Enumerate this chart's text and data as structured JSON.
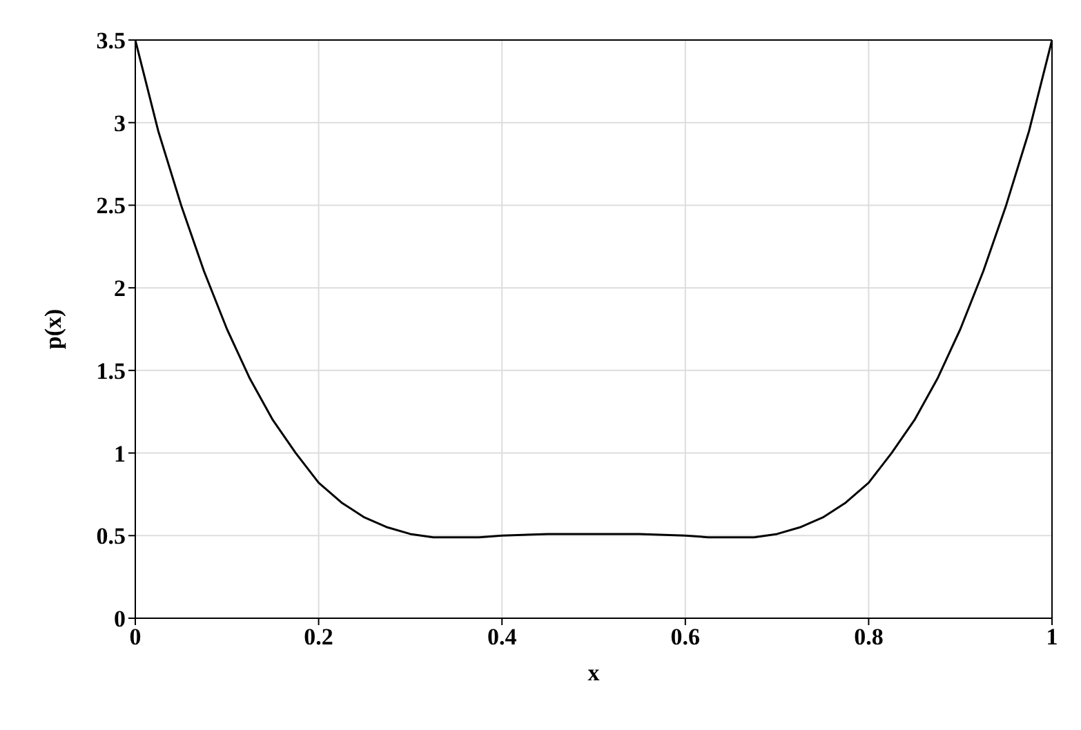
{
  "chart_data": {
    "type": "line",
    "xlabel": "x",
    "ylabel": "p(x)",
    "xlim": [
      0,
      1
    ],
    "ylim": [
      0,
      3.5
    ],
    "xticks": [
      0,
      0.2,
      0.4,
      0.6,
      0.8,
      1
    ],
    "yticks": [
      0,
      0.5,
      1,
      1.5,
      2,
      2.5,
      3,
      3.5
    ],
    "grid": true,
    "marker": "none",
    "line_style": "solid",
    "x": [
      0,
      0.025,
      0.05,
      0.075,
      0.1,
      0.125,
      0.15,
      0.175,
      0.2,
      0.225,
      0.25,
      0.275,
      0.3,
      0.325,
      0.35,
      0.375,
      0.4,
      0.45,
      0.5,
      0.55,
      0.6,
      0.625,
      0.65,
      0.675,
      0.7,
      0.725,
      0.75,
      0.775,
      0.8,
      0.825,
      0.85,
      0.875,
      0.9,
      0.925,
      0.95,
      0.975,
      1
    ],
    "series": [
      {
        "color": "#000000",
        "values": [
          3.5,
          2.95,
          2.5,
          2.1,
          1.75,
          1.45,
          1.2,
          1.0,
          0.82,
          0.7,
          0.61,
          0.55,
          0.51,
          0.49,
          0.49,
          0.49,
          0.5,
          0.51,
          0.51,
          0.51,
          0.5,
          0.49,
          0.49,
          0.49,
          0.51,
          0.55,
          0.61,
          0.7,
          0.82,
          1.0,
          1.2,
          1.45,
          1.75,
          2.1,
          2.5,
          2.95,
          3.5
        ]
      }
    ]
  }
}
